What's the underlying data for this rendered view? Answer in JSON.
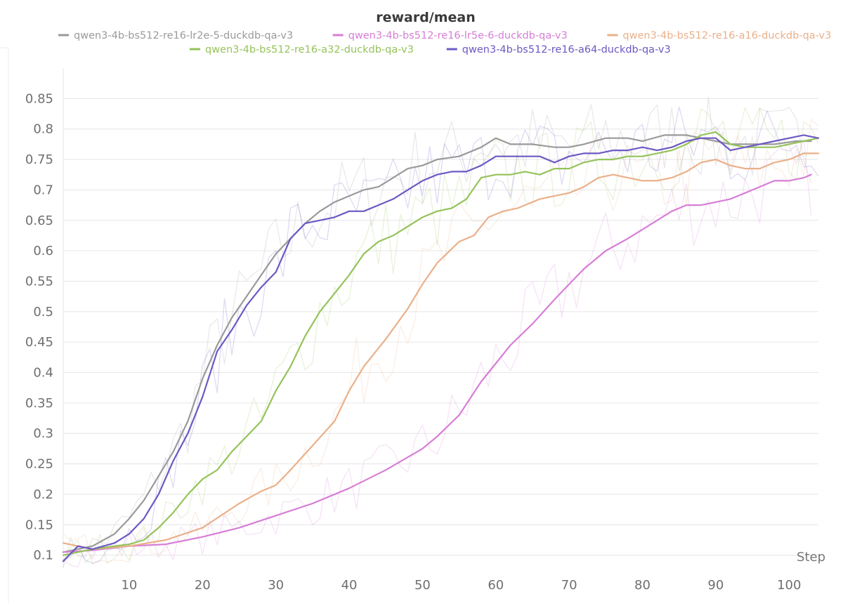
{
  "chart_data": {
    "type": "line",
    "title": "reward/mean",
    "xlabel": "Step",
    "ylabel": "",
    "xlim": [
      1,
      104
    ],
    "ylim": [
      0.08,
      0.9
    ],
    "x_ticks": [
      10,
      20,
      30,
      40,
      50,
      60,
      70,
      80,
      90,
      100
    ],
    "y_ticks": [
      0.1,
      0.15,
      0.2,
      0.25,
      0.3,
      0.35,
      0.4,
      0.45,
      0.5,
      0.55,
      0.6,
      0.65,
      0.7,
      0.75,
      0.8,
      0.85
    ],
    "grid": true,
    "legend_position": "top",
    "smoothed": true,
    "series": [
      {
        "name": "qwen3-4b-bs512-re16-lr2e-5-duckdb-qa-v3",
        "color": "#9a9a9a",
        "points": [
          [
            1,
            0.105
          ],
          [
            5,
            0.115
          ],
          [
            8,
            0.135
          ],
          [
            10,
            0.16
          ],
          [
            12,
            0.19
          ],
          [
            14,
            0.23
          ],
          [
            16,
            0.27
          ],
          [
            18,
            0.32
          ],
          [
            20,
            0.39
          ],
          [
            22,
            0.445
          ],
          [
            24,
            0.49
          ],
          [
            26,
            0.525
          ],
          [
            28,
            0.56
          ],
          [
            30,
            0.595
          ],
          [
            32,
            0.62
          ],
          [
            34,
            0.645
          ],
          [
            36,
            0.665
          ],
          [
            38,
            0.68
          ],
          [
            40,
            0.69
          ],
          [
            42,
            0.7
          ],
          [
            44,
            0.705
          ],
          [
            46,
            0.72
          ],
          [
            48,
            0.735
          ],
          [
            50,
            0.74
          ],
          [
            52,
            0.75
          ],
          [
            55,
            0.755
          ],
          [
            58,
            0.77
          ],
          [
            60,
            0.785
          ],
          [
            62,
            0.775
          ],
          [
            65,
            0.775
          ],
          [
            68,
            0.77
          ],
          [
            70,
            0.77
          ],
          [
            72,
            0.775
          ],
          [
            75,
            0.785
          ],
          [
            78,
            0.785
          ],
          [
            80,
            0.78
          ],
          [
            83,
            0.79
          ],
          [
            86,
            0.79
          ],
          [
            88,
            0.785
          ],
          [
            90,
            0.78
          ],
          [
            92,
            0.775
          ],
          [
            95,
            0.775
          ],
          [
            98,
            0.775
          ],
          [
            101,
            0.78
          ],
          [
            103,
            0.78
          ]
        ]
      },
      {
        "name": "qwen3-4b-bs512-re16-lr5e-6-duckdb-qa-v3",
        "color": "#d67ed6",
        "points": [
          [
            1,
            0.105
          ],
          [
            5,
            0.108
          ],
          [
            10,
            0.115
          ],
          [
            15,
            0.118
          ],
          [
            20,
            0.13
          ],
          [
            25,
            0.145
          ],
          [
            30,
            0.165
          ],
          [
            35,
            0.185
          ],
          [
            40,
            0.21
          ],
          [
            45,
            0.24
          ],
          [
            50,
            0.275
          ],
          [
            52,
            0.295
          ],
          [
            55,
            0.33
          ],
          [
            58,
            0.385
          ],
          [
            60,
            0.415
          ],
          [
            62,
            0.445
          ],
          [
            65,
            0.48
          ],
          [
            68,
            0.52
          ],
          [
            70,
            0.545
          ],
          [
            72,
            0.57
          ],
          [
            75,
            0.6
          ],
          [
            78,
            0.62
          ],
          [
            80,
            0.635
          ],
          [
            82,
            0.65
          ],
          [
            84,
            0.665
          ],
          [
            86,
            0.675
          ],
          [
            88,
            0.675
          ],
          [
            90,
            0.68
          ],
          [
            92,
            0.685
          ],
          [
            94,
            0.695
          ],
          [
            96,
            0.705
          ],
          [
            98,
            0.715
          ],
          [
            100,
            0.715
          ],
          [
            102,
            0.72
          ],
          [
            103,
            0.725
          ]
        ]
      },
      {
        "name": "qwen3-4b-bs512-re16-a16-duckdb-qa-v3",
        "color": "#eab08a",
        "points": [
          [
            1,
            0.12
          ],
          [
            5,
            0.11
          ],
          [
            10,
            0.115
          ],
          [
            15,
            0.125
          ],
          [
            20,
            0.145
          ],
          [
            25,
            0.185
          ],
          [
            28,
            0.205
          ],
          [
            30,
            0.215
          ],
          [
            32,
            0.24
          ],
          [
            35,
            0.28
          ],
          [
            38,
            0.32
          ],
          [
            40,
            0.37
          ],
          [
            42,
            0.41
          ],
          [
            45,
            0.455
          ],
          [
            48,
            0.505
          ],
          [
            50,
            0.545
          ],
          [
            52,
            0.58
          ],
          [
            55,
            0.615
          ],
          [
            57,
            0.625
          ],
          [
            59,
            0.655
          ],
          [
            61,
            0.665
          ],
          [
            63,
            0.67
          ],
          [
            66,
            0.685
          ],
          [
            68,
            0.69
          ],
          [
            70,
            0.695
          ],
          [
            72,
            0.705
          ],
          [
            74,
            0.72
          ],
          [
            76,
            0.725
          ],
          [
            78,
            0.72
          ],
          [
            80,
            0.715
          ],
          [
            82,
            0.715
          ],
          [
            84,
            0.72
          ],
          [
            86,
            0.73
          ],
          [
            88,
            0.745
          ],
          [
            90,
            0.75
          ],
          [
            92,
            0.74
          ],
          [
            94,
            0.735
          ],
          [
            96,
            0.735
          ],
          [
            98,
            0.745
          ],
          [
            100,
            0.75
          ],
          [
            102,
            0.76
          ],
          [
            104,
            0.76
          ]
        ]
      },
      {
        "name": "qwen3-4b-bs512-re16-a32-duckdb-qa-v3",
        "color": "#95c35b",
        "points": [
          [
            1,
            0.1
          ],
          [
            5,
            0.11
          ],
          [
            8,
            0.115
          ],
          [
            10,
            0.118
          ],
          [
            12,
            0.125
          ],
          [
            14,
            0.145
          ],
          [
            16,
            0.17
          ],
          [
            18,
            0.2
          ],
          [
            20,
            0.225
          ],
          [
            22,
            0.24
          ],
          [
            24,
            0.27
          ],
          [
            26,
            0.295
          ],
          [
            28,
            0.32
          ],
          [
            30,
            0.37
          ],
          [
            32,
            0.41
          ],
          [
            34,
            0.46
          ],
          [
            36,
            0.5
          ],
          [
            38,
            0.53
          ],
          [
            40,
            0.56
          ],
          [
            42,
            0.595
          ],
          [
            44,
            0.615
          ],
          [
            46,
            0.625
          ],
          [
            48,
            0.64
          ],
          [
            50,
            0.655
          ],
          [
            52,
            0.665
          ],
          [
            54,
            0.67
          ],
          [
            56,
            0.685
          ],
          [
            58,
            0.72
          ],
          [
            60,
            0.725
          ],
          [
            62,
            0.725
          ],
          [
            64,
            0.73
          ],
          [
            66,
            0.725
          ],
          [
            68,
            0.735
          ],
          [
            70,
            0.735
          ],
          [
            72,
            0.745
          ],
          [
            74,
            0.75
          ],
          [
            76,
            0.75
          ],
          [
            78,
            0.755
          ],
          [
            80,
            0.755
          ],
          [
            82,
            0.76
          ],
          [
            84,
            0.765
          ],
          [
            86,
            0.775
          ],
          [
            88,
            0.79
          ],
          [
            90,
            0.795
          ],
          [
            92,
            0.775
          ],
          [
            94,
            0.77
          ],
          [
            96,
            0.77
          ],
          [
            98,
            0.77
          ],
          [
            100,
            0.775
          ],
          [
            102,
            0.78
          ],
          [
            104,
            0.785
          ]
        ]
      },
      {
        "name": "qwen3-4b-bs512-re16-a64-duckdb-qa-v3",
        "color": "#6e58c4",
        "points": [
          [
            1,
            0.09
          ],
          [
            3,
            0.115
          ],
          [
            5,
            0.11
          ],
          [
            8,
            0.12
          ],
          [
            10,
            0.135
          ],
          [
            12,
            0.16
          ],
          [
            14,
            0.2
          ],
          [
            16,
            0.255
          ],
          [
            18,
            0.3
          ],
          [
            20,
            0.36
          ],
          [
            22,
            0.435
          ],
          [
            24,
            0.47
          ],
          [
            26,
            0.51
          ],
          [
            28,
            0.54
          ],
          [
            30,
            0.565
          ],
          [
            32,
            0.62
          ],
          [
            34,
            0.645
          ],
          [
            36,
            0.65
          ],
          [
            38,
            0.655
          ],
          [
            40,
            0.665
          ],
          [
            42,
            0.665
          ],
          [
            44,
            0.675
          ],
          [
            46,
            0.685
          ],
          [
            48,
            0.7
          ],
          [
            50,
            0.715
          ],
          [
            52,
            0.725
          ],
          [
            54,
            0.73
          ],
          [
            56,
            0.73
          ],
          [
            58,
            0.74
          ],
          [
            60,
            0.755
          ],
          [
            62,
            0.755
          ],
          [
            64,
            0.755
          ],
          [
            66,
            0.755
          ],
          [
            68,
            0.745
          ],
          [
            70,
            0.755
          ],
          [
            72,
            0.76
          ],
          [
            74,
            0.76
          ],
          [
            76,
            0.765
          ],
          [
            78,
            0.765
          ],
          [
            80,
            0.77
          ],
          [
            82,
            0.765
          ],
          [
            84,
            0.77
          ],
          [
            86,
            0.78
          ],
          [
            88,
            0.785
          ],
          [
            90,
            0.785
          ],
          [
            92,
            0.765
          ],
          [
            94,
            0.77
          ],
          [
            96,
            0.775
          ],
          [
            98,
            0.78
          ],
          [
            100,
            0.785
          ],
          [
            102,
            0.79
          ],
          [
            104,
            0.785
          ]
        ]
      }
    ]
  }
}
